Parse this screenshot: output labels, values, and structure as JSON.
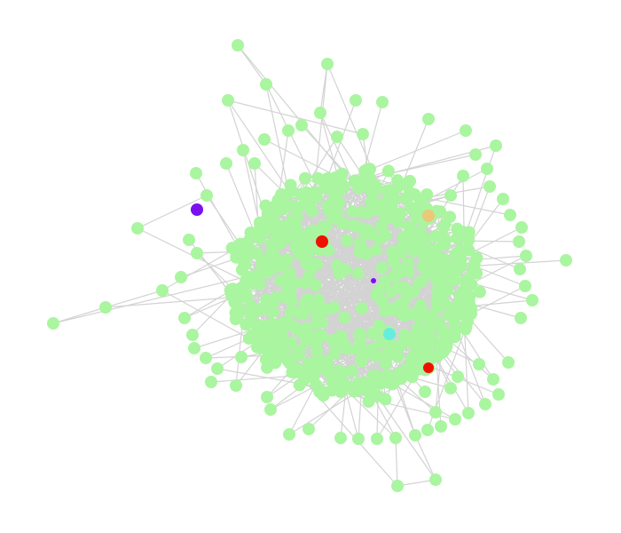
{
  "graph": {
    "type": "network",
    "colors": {
      "background": "#ffffff",
      "edge": "#d3d3d3",
      "node_default": "#aaf5a0",
      "highlight_purple": "#7a10f0",
      "highlight_red": "#ee1100",
      "highlight_orange": "#ecc878",
      "highlight_cyan": "#66eedd"
    }
  }
}
